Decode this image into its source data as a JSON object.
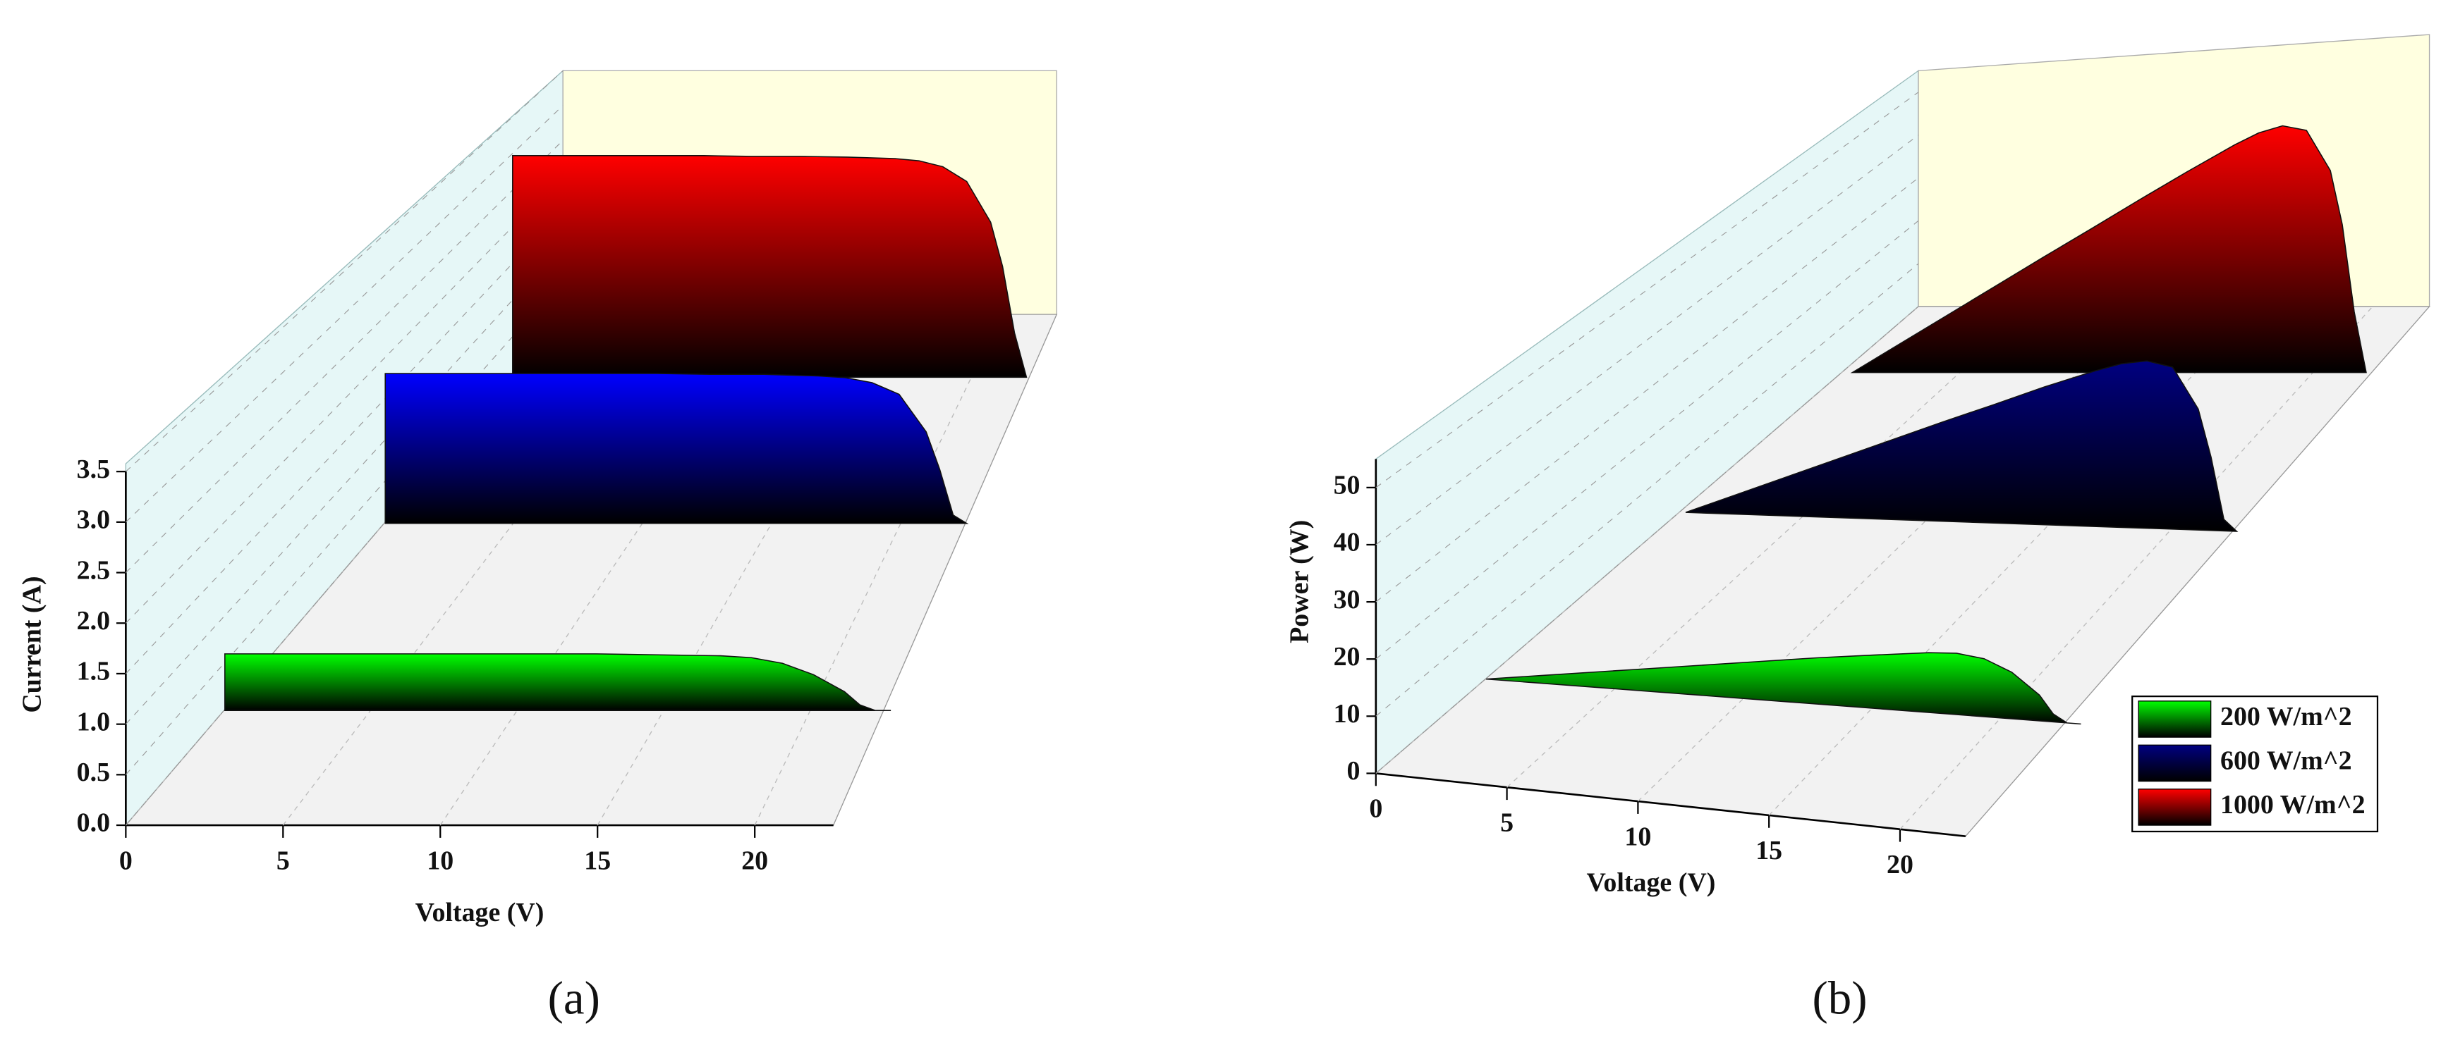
{
  "chart_data": [
    {
      "type": "ribbon3d",
      "label": "(a)",
      "x_label": "Voltage (V)",
      "y_label": "Current (A)",
      "x": [
        0,
        2,
        4,
        6,
        8,
        10,
        12,
        14,
        16,
        17,
        18,
        19,
        20,
        20.5,
        21,
        21.5
      ],
      "series": [
        {
          "color": "#00ff00",
          "values": [
            0.6,
            0.6,
            0.6,
            0.6,
            0.6,
            0.6,
            0.6,
            0.59,
            0.58,
            0.56,
            0.5,
            0.38,
            0.2,
            0.06,
            0,
            0
          ]
        },
        {
          "color": "#0000ff",
          "values": [
            1.8,
            1.8,
            1.8,
            1.8,
            1.8,
            1.8,
            1.79,
            1.79,
            1.77,
            1.75,
            1.69,
            1.55,
            1.1,
            0.65,
            0.1,
            0
          ]
        },
        {
          "color": "#ff0000",
          "values": [
            3.0,
            3.0,
            3.0,
            3.0,
            3.0,
            2.99,
            2.99,
            2.98,
            2.96,
            2.93,
            2.85,
            2.65,
            2.1,
            1.5,
            0.6,
            0
          ]
        }
      ],
      "xlim": [
        0,
        22.5
      ],
      "xticks": [
        0,
        5,
        10,
        15,
        20
      ],
      "ylim": [
        0,
        3.5
      ],
      "yticks": [
        {
          "value": 0,
          "label": "0.0"
        },
        0.5,
        {
          "value": 1,
          "label": "1.0"
        },
        1.5,
        {
          "value": 2,
          "label": "2.0"
        },
        2.5,
        {
          "value": 3,
          "label": "3.0"
        },
        3.5
      ],
      "grid": true
    },
    {
      "type": "ribbon3d",
      "label": "(b)",
      "x_label": "Voltage (V)",
      "y_label": "Power (W)",
      "x": [
        0,
        2,
        4,
        6,
        8,
        10,
        12,
        14,
        16,
        17,
        18,
        19,
        20,
        20.5,
        21,
        21.5
      ],
      "series": [
        {
          "name": "200 W/m^2",
          "color": "#00ff00",
          "values": [
            0,
            1.2,
            2.4,
            3.6,
            4.8,
            6,
            7.2,
            8.26,
            9.28,
            9.52,
            9,
            7.22,
            4,
            1.23,
            0,
            0
          ]
        },
        {
          "name": "600 W/m^2",
          "color": "#000080",
          "values": [
            0,
            3.6,
            7.2,
            10.8,
            14.4,
            18,
            21.48,
            25.06,
            28.32,
            29.75,
            30.42,
            29.45,
            22,
            13.33,
            2.1,
            0
          ]
        },
        {
          "name": "1000 W/m^2",
          "color": "#ff0000",
          "values": [
            0,
            6,
            12,
            18,
            24,
            29.9,
            35.88,
            41.72,
            47.36,
            49.81,
            51.3,
            50.35,
            42,
            30.75,
            12.6,
            0
          ]
        }
      ],
      "xlim": [
        0,
        22.5
      ],
      "xticks": [
        0,
        5,
        10,
        15,
        20
      ],
      "ylim": [
        0,
        55
      ],
      "yticks": [
        0,
        10,
        20,
        30,
        40,
        50
      ],
      "grid": true,
      "legend": "right"
    }
  ]
}
